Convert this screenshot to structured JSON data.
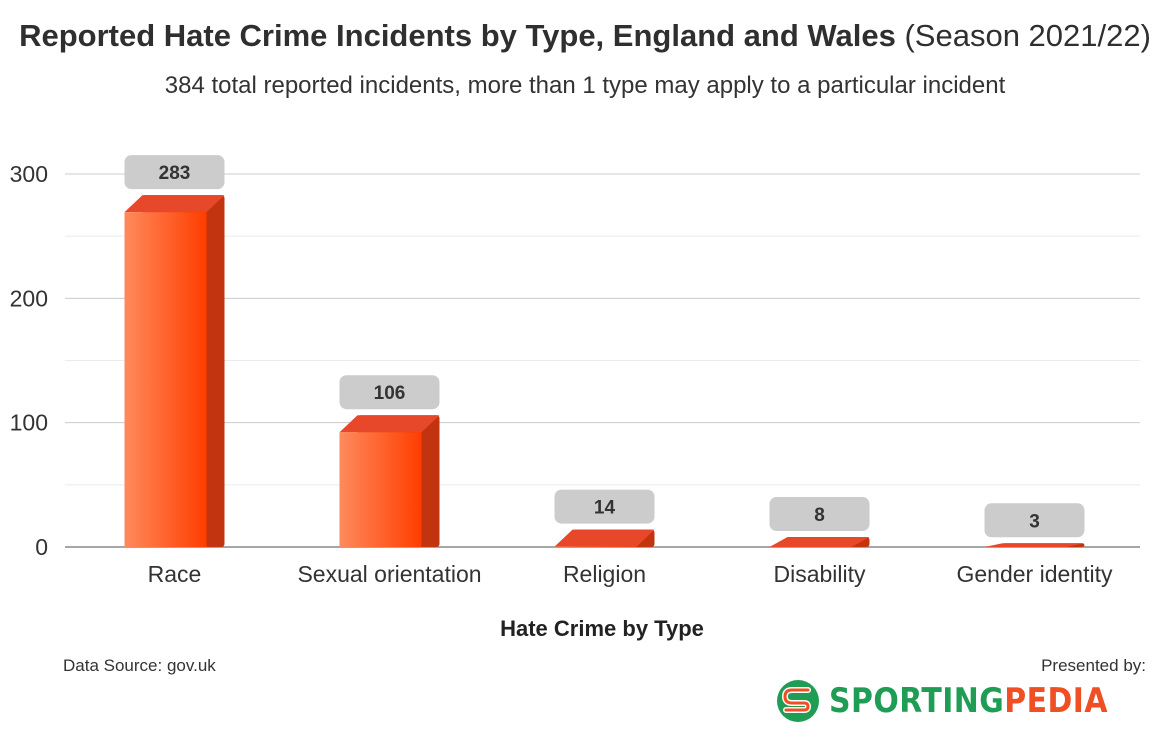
{
  "header": {
    "title_bold": "Reported Hate Crime Incidents by Type, England and Wales",
    "title_normal": "(Season 2021/22)",
    "subtitle": "384 total reported incidents, more than 1 type may apply to a particular incident"
  },
  "footer": {
    "source": "Data Source: gov.uk",
    "presented_by": "Presented by:",
    "brand_part1": "SPORTING",
    "brand_part2": "PEDIA"
  },
  "colors": {
    "bar_light": "#ff8a5c",
    "bar_dark": "#ff3d00",
    "bar_side": "#c23410",
    "bar_top": "#e8482a",
    "label_bg": "#cccccc",
    "grid": "#cccccc",
    "brand_green": "#1f9d55",
    "brand_orange": "#f04e23"
  },
  "chart_data": {
    "type": "bar",
    "categories": [
      "Race",
      "Sexual orientation",
      "Religion",
      "Disability",
      "Gender identity"
    ],
    "values": [
      283,
      106,
      14,
      8,
      3
    ],
    "data_labels": [
      "283",
      "106",
      "14",
      "8",
      "3"
    ],
    "xlabel": "Hate Crime by Type",
    "ylabel": "",
    "ylim": [
      0,
      300
    ],
    "yticks": [
      0,
      100,
      200,
      300
    ],
    "grid": true
  }
}
